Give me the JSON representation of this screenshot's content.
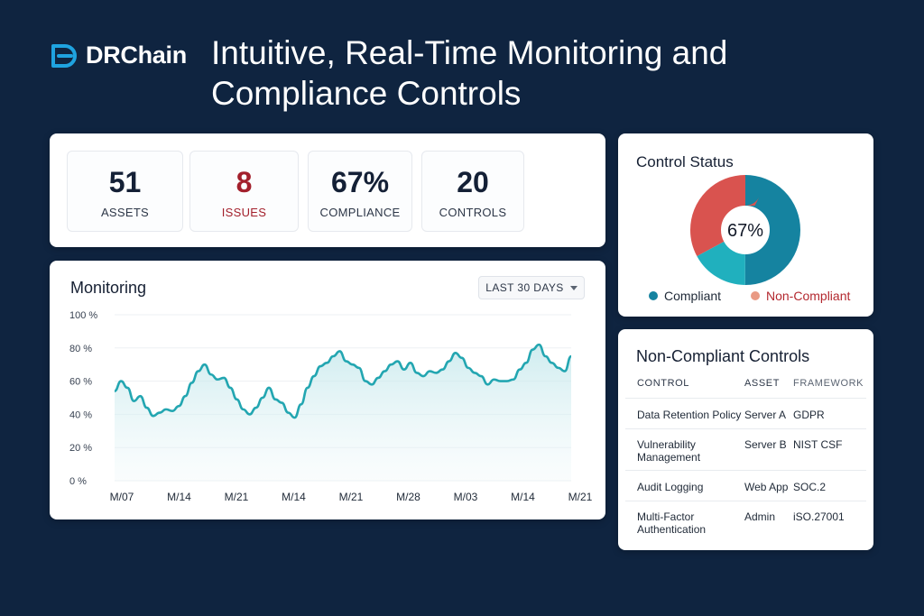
{
  "brand": {
    "name": "DRChain",
    "accent": "#1fa3e0"
  },
  "headline": {
    "line1": "Intuitive, Real-Time Monitoring and",
    "line2": "Compliance Controls"
  },
  "kpis": [
    {
      "value": "51",
      "label": "ASSETS"
    },
    {
      "value": "8",
      "label": "ISSUES",
      "color": "#a3202c"
    },
    {
      "value": "67%",
      "label": "COMPLIANCE"
    },
    {
      "value": "20",
      "label": "CONTROLS"
    }
  ],
  "monitoring": {
    "title": "Monitoring",
    "range_label": "LAST 30 DAYS",
    "line_color": "#23a6b1",
    "chart_data": {
      "type": "area",
      "title": "Monitoring",
      "xlabel": "",
      "ylabel": "",
      "ylim": [
        0,
        100
      ],
      "yticks": [
        "100 %",
        "80 %",
        "60 %",
        "40 %",
        "20 %",
        "0 %"
      ],
      "xticks": [
        "M/07",
        "M/14",
        "M/21",
        "M/14",
        "M/21",
        "M/28",
        "M/03",
        "M/14",
        "M/21"
      ],
      "grid": true,
      "series": [
        {
          "values": [
            54,
            60,
            56,
            48,
            51,
            44,
            39,
            41,
            43,
            42,
            45,
            51,
            59,
            66,
            70,
            64,
            61,
            62,
            56,
            49,
            43,
            40,
            44,
            50,
            56,
            49,
            47,
            41,
            38,
            46,
            56,
            63,
            69,
            71,
            75,
            78,
            72,
            70,
            68,
            60,
            58,
            62,
            66,
            70,
            72,
            67,
            71,
            65,
            63,
            66,
            65,
            67,
            72,
            77,
            74,
            68,
            65,
            63,
            58,
            61,
            60,
            60,
            61,
            67,
            71,
            79,
            82,
            75,
            71,
            68,
            66,
            75
          ]
        }
      ]
    }
  },
  "control_status": {
    "title": "Control Status",
    "center_label": "67%",
    "chart_data": {
      "type": "pie",
      "title": "Control Status",
      "categories": [
        "Compliant",
        "Non-Compliant"
      ],
      "values": [
        67,
        33
      ],
      "colors": [
        "#1583a0",
        "#d9534f"
      ],
      "sub_colors": [
        "#1583a0",
        "#20b0be",
        "#d9534f"
      ],
      "sub_values": [
        50,
        17,
        33
      ],
      "legend": "bottom"
    },
    "legend": [
      {
        "label": "Compliant",
        "color": "#1583a0"
      },
      {
        "label": "Non-Compliant",
        "color": "#e99a84",
        "text_color": "#b3282f"
      }
    ]
  },
  "non_compliant": {
    "title": "Non-Compliant Controls",
    "columns": [
      "CONTROL",
      "ASSET",
      "FRAMEWORK"
    ],
    "rows": [
      {
        "control_l1": "Data Retention Policy",
        "control_l2": "",
        "asset": "Server A",
        "framework": "GDPR"
      },
      {
        "control_l1": "Vulnerability",
        "control_l2": "Management",
        "asset": "Server B",
        "framework": "NIST CSF"
      },
      {
        "control_l1": "Audit Logging",
        "control_l2": "",
        "asset": "Web App",
        "framework": "SOC.2"
      },
      {
        "control_l1": "Multi-Factor",
        "control_l2": "Authentication",
        "asset": "Admin",
        "framework": "iSO.27001"
      }
    ]
  }
}
